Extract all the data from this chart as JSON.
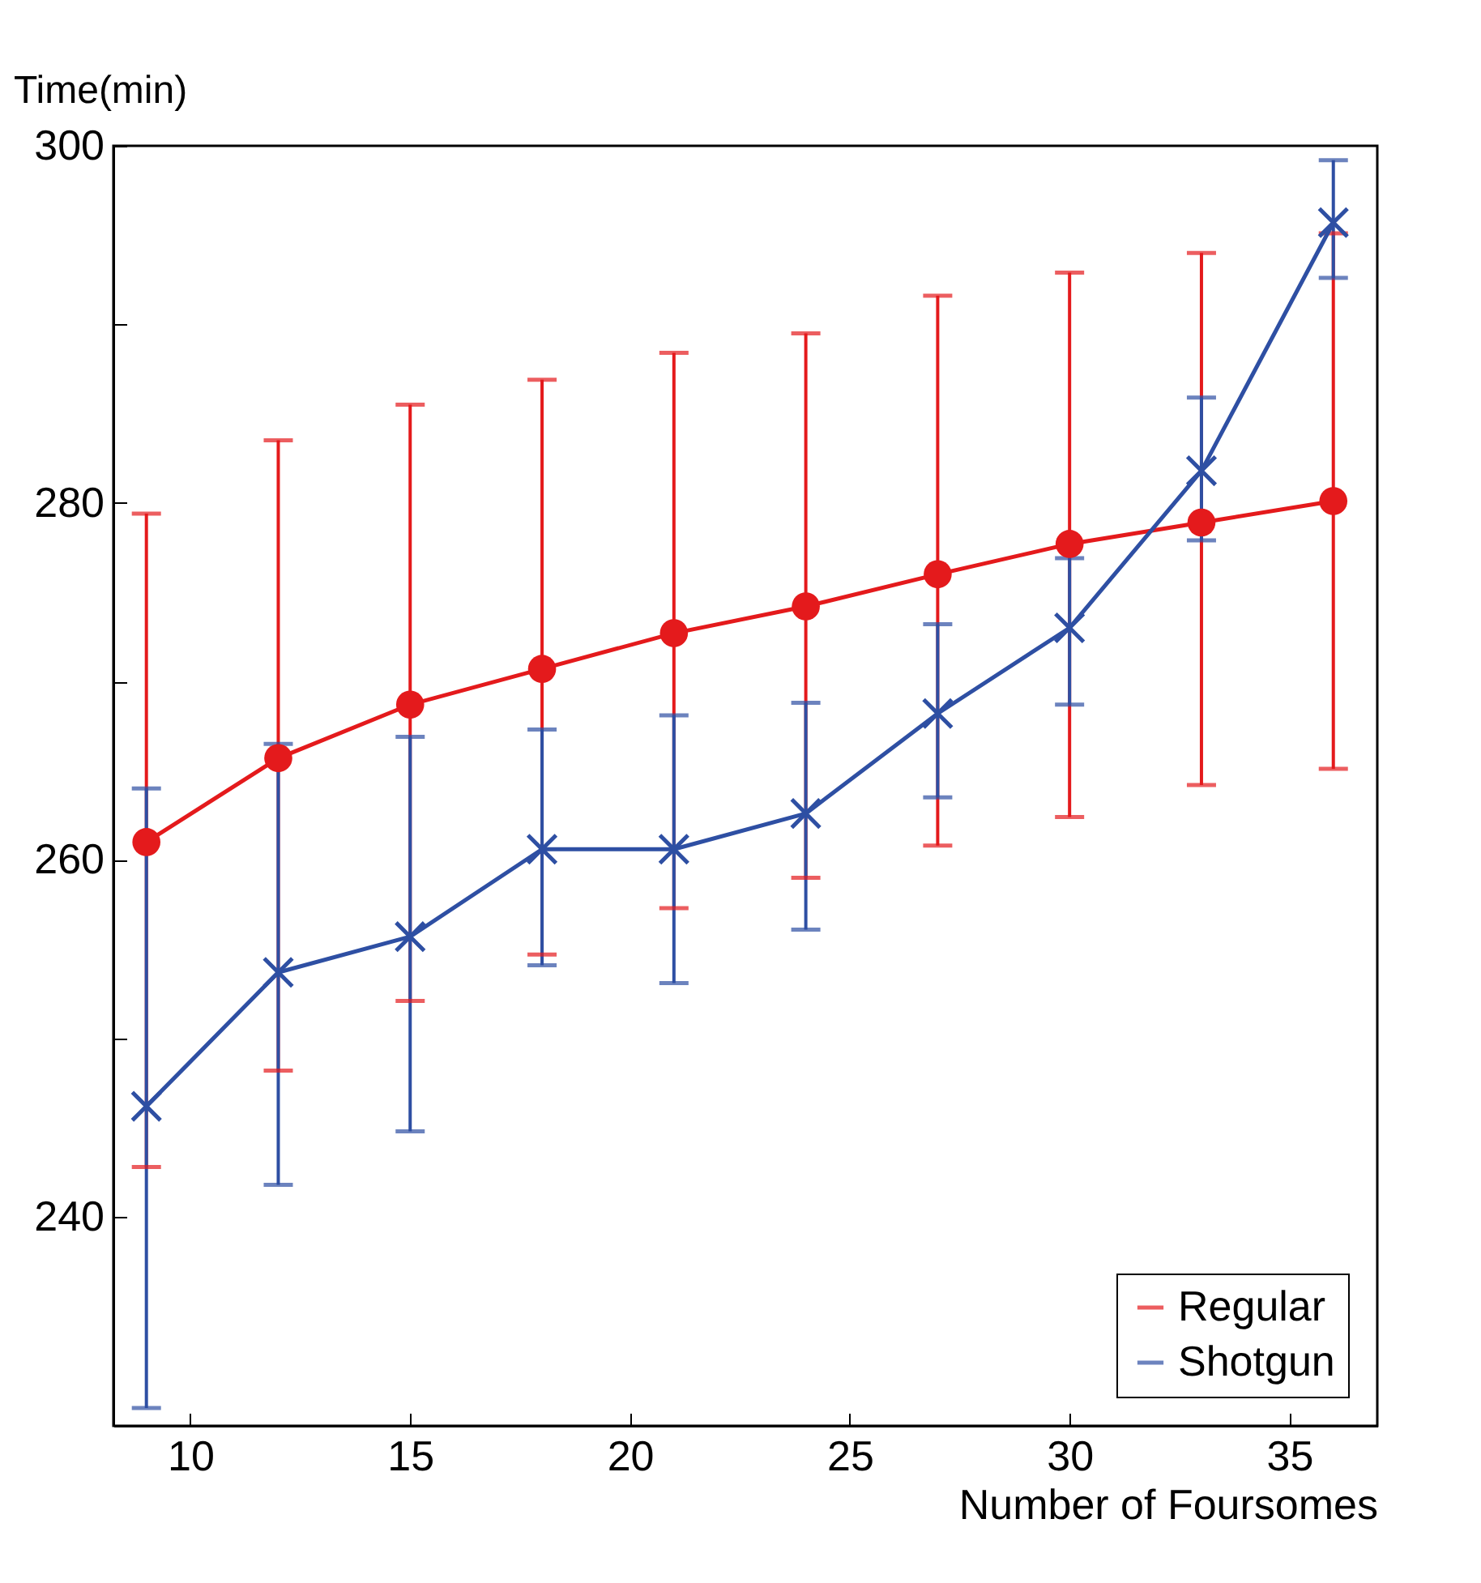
{
  "chart_data": {
    "type": "line",
    "xlabel": "Number of Foursomes",
    "ylabel": "Time(min)",
    "x": [
      9,
      12,
      15,
      18,
      21,
      24,
      27,
      30,
      33,
      36
    ],
    "series": [
      {
        "name": "Regular",
        "color": "#e41a1c",
        "marker": "circle",
        "values": [
          261.0,
          265.7,
          268.7,
          270.7,
          272.7,
          274.2,
          276.0,
          277.7,
          278.9,
          280.1
        ],
        "errors": [
          [
            242.8,
            279.4
          ],
          [
            248.2,
            283.5
          ],
          [
            252.1,
            285.5
          ],
          [
            254.7,
            286.9
          ],
          [
            257.3,
            288.4
          ],
          [
            259.0,
            289.5
          ],
          [
            260.8,
            291.6
          ],
          [
            262.4,
            292.9
          ],
          [
            264.2,
            294.0
          ],
          [
            265.1,
            295.1
          ]
        ]
      },
      {
        "name": "Shotgun",
        "color": "#2e4fa3",
        "marker": "cross",
        "values": [
          246.2,
          253.7,
          255.7,
          260.6,
          260.6,
          262.6,
          268.2,
          273.0,
          281.8,
          295.7
        ],
        "errors": [
          [
            229.3,
            264.0
          ],
          [
            241.8,
            266.5
          ],
          [
            244.8,
            266.9
          ],
          [
            254.1,
            267.3
          ],
          [
            253.1,
            268.1
          ],
          [
            256.1,
            268.8
          ],
          [
            263.5,
            273.2
          ],
          [
            268.7,
            276.9
          ],
          [
            277.9,
            285.9
          ],
          [
            292.6,
            299.2
          ]
        ]
      }
    ],
    "xlim": [
      8.25,
      37
    ],
    "ylim": [
      228.3,
      300
    ],
    "xticks": [
      10,
      15,
      20,
      25,
      30,
      35
    ],
    "yticks": [
      240,
      {
        "value": 250,
        "label": null
      },
      260,
      {
        "value": 270,
        "label": null
      },
      280,
      {
        "value": 290,
        "label": null
      },
      300
    ],
    "legend": "bottom right",
    "grid": false,
    "line_style": "solid"
  }
}
